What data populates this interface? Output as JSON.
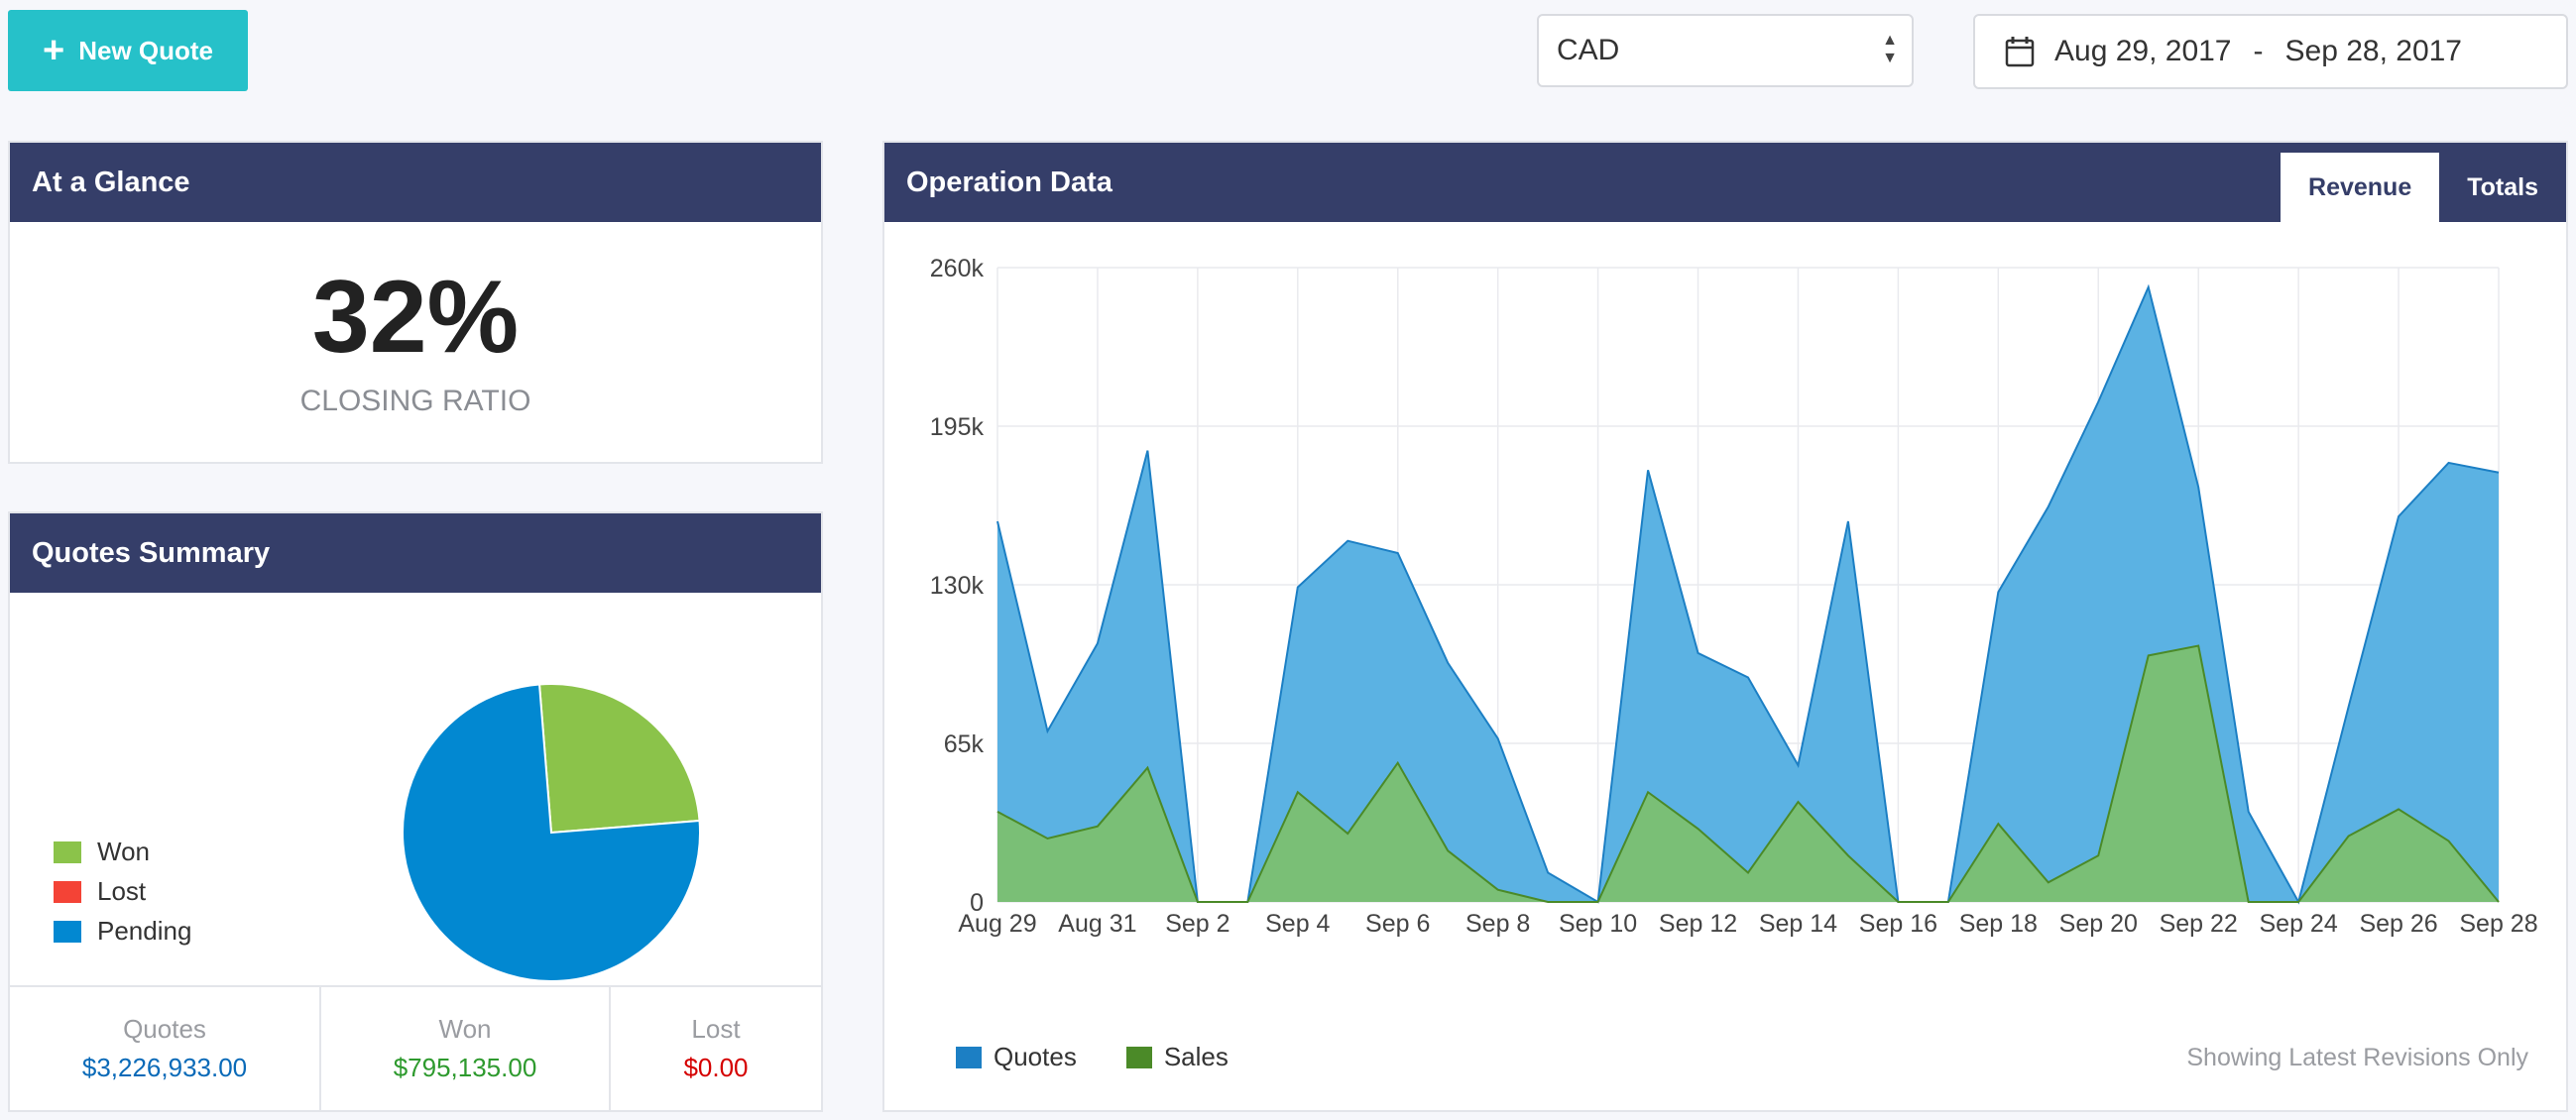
{
  "toolbar": {
    "new_quote_label": "New Quote"
  },
  "currency": {
    "selected": "CAD"
  },
  "date_range": {
    "start": "Aug 29, 2017",
    "separator": "-",
    "end": "Sep 28, 2017"
  },
  "glance": {
    "title": "At a Glance",
    "closing_ratio": "32%",
    "closing_label": "CLOSING RATIO"
  },
  "summary": {
    "title": "Quotes Summary",
    "legend": [
      {
        "label": "Won",
        "color": "#8bc34a"
      },
      {
        "label": "Lost",
        "color": "#f44336"
      },
      {
        "label": "Pending",
        "color": "#0288d1"
      }
    ],
    "totals": [
      {
        "label": "Quotes",
        "value": "$3,226,933.00",
        "color": "#0a6ab8"
      },
      {
        "label": "Won",
        "value": "$795,135.00",
        "color": "#2e9a2e"
      },
      {
        "label": "Lost",
        "value": "$0.00",
        "color": "#d50000"
      }
    ]
  },
  "operation": {
    "title": "Operation Data",
    "tabs": [
      {
        "label": "Revenue",
        "active": true
      },
      {
        "label": "Totals",
        "active": false
      }
    ],
    "note": "Showing Latest Revisions Only",
    "legend": [
      {
        "label": "Quotes",
        "color": "#1c7fc4"
      },
      {
        "label": "Sales",
        "color": "#4b8a28"
      }
    ]
  },
  "chart_data": [
    {
      "type": "pie",
      "slices": [
        {
          "label": "Won",
          "value": 25,
          "color": "#8bc34a"
        },
        {
          "label": "Lost",
          "value": 0,
          "color": "#f44336"
        },
        {
          "label": "Pending",
          "value": 75,
          "color": "#0288d1"
        }
      ]
    },
    {
      "type": "area",
      "x": [
        "Aug 29",
        "Aug 30",
        "Aug 31",
        "Sep 1",
        "Sep 2",
        "Sep 3",
        "Sep 4",
        "Sep 5",
        "Sep 6",
        "Sep 7",
        "Sep 8",
        "Sep 9",
        "Sep 10",
        "Sep 11",
        "Sep 12",
        "Sep 13",
        "Sep 14",
        "Sep 15",
        "Sep 16",
        "Sep 17",
        "Sep 18",
        "Sep 19",
        "Sep 20",
        "Sep 21",
        "Sep 22",
        "Sep 23",
        "Sep 24",
        "Sep 25",
        "Sep 26",
        "Sep 27",
        "Sep 28"
      ],
      "x_tick_labels": [
        "Aug 29",
        "Aug 31",
        "Sep 2",
        "Sep 4",
        "Sep 6",
        "Sep 8",
        "Sep 10",
        "Sep 12",
        "Sep 14",
        "Sep 16",
        "Sep 18",
        "Sep 20",
        "Sep 22",
        "Sep 24",
        "Sep 26",
        "Sep 28"
      ],
      "y_ticks": [
        "0",
        "65k",
        "130k",
        "195k",
        "260k"
      ],
      "ylim": [
        0,
        260000
      ],
      "grid": true,
      "series": [
        {
          "name": "Quotes",
          "color": "#58b0e2",
          "stroke": "#1c7fc4",
          "values": [
            156000,
            70000,
            106000,
            185000,
            0,
            0,
            129000,
            148000,
            143000,
            98000,
            67000,
            12000,
            0,
            177000,
            102000,
            92000,
            56000,
            156000,
            0,
            0,
            127000,
            162000,
            205000,
            252000,
            170000,
            37000,
            0,
            80000,
            158000,
            180000,
            176000
          ]
        },
        {
          "name": "Sales",
          "color": "#7cc070",
          "stroke": "#4b8a28",
          "values": [
            37000,
            26000,
            31000,
            55000,
            0,
            0,
            45000,
            28000,
            57000,
            21000,
            5000,
            0,
            0,
            45000,
            30000,
            12000,
            41000,
            19000,
            0,
            0,
            32000,
            8000,
            19000,
            101000,
            105000,
            0,
            0,
            27000,
            38000,
            25000,
            0
          ]
        }
      ]
    }
  ]
}
